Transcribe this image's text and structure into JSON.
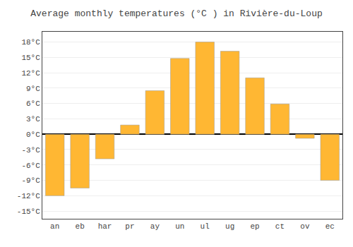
{
  "chart_data": {
    "type": "bar",
    "title": "Average monthly temperatures (°C ) in Rivière-du-Loup",
    "categories": [
      "an",
      "eb",
      "har",
      "pr",
      "ay",
      "un",
      "ul",
      "ug",
      "ep",
      "ct",
      "ov",
      "ec"
    ],
    "values": [
      -12.0,
      -10.5,
      -4.8,
      1.8,
      8.5,
      14.8,
      18.0,
      16.2,
      11.0,
      5.9,
      -0.8,
      -9.0
    ],
    "color": "#FFB733",
    "ylim": [
      -16.5,
      20.0
    ],
    "yticks": [
      {
        "value": -15,
        "label": "-15°C"
      },
      {
        "value": -12,
        "label": "-12°C"
      },
      {
        "value": -9,
        "label": "-9°C"
      },
      {
        "value": -6,
        "label": "-6°C"
      },
      {
        "value": -3,
        "label": "-3°C"
      },
      {
        "value": 0,
        "label": "0°C"
      },
      {
        "value": 3,
        "label": "3°C"
      },
      {
        "value": 6,
        "label": "6°C"
      },
      {
        "value": 9,
        "label": "9°C"
      },
      {
        "value": 12,
        "label": "12°C"
      },
      {
        "value": 15,
        "label": "15°C"
      },
      {
        "value": 18,
        "label": "18°C"
      }
    ],
    "grid": true
  }
}
